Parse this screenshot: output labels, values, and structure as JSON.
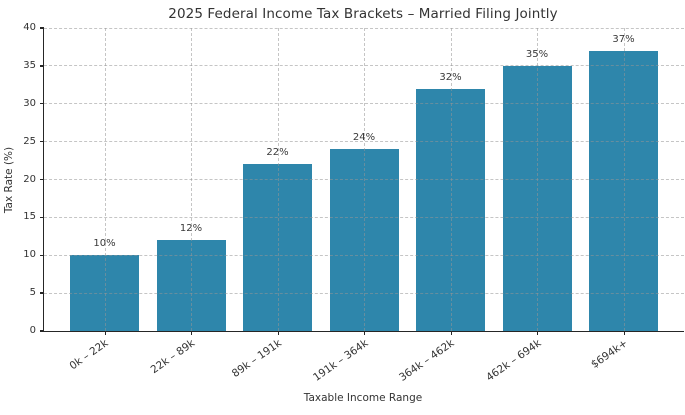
{
  "chart_data": {
    "type": "bar",
    "title": "2025 Federal Income Tax Brackets – Married Filing Jointly",
    "categories": [
      "0k – 22k",
      "22k – 89k",
      "89k – 191k",
      "191k – 364k",
      "364k – 462k",
      "462k – 694k",
      "$694k+"
    ],
    "values": [
      10,
      12,
      22,
      24,
      32,
      35,
      37
    ],
    "bar_labels": [
      "10%",
      "12%",
      "22%",
      "24%",
      "32%",
      "35%",
      "37%"
    ],
    "xlabel": "Taxable Income Range",
    "ylabel": "Tax Rate (%)",
    "ylim": [
      0,
      40
    ],
    "yticks": [
      0,
      5,
      10,
      15,
      20,
      25,
      30,
      35,
      40
    ],
    "grid": true,
    "grid_style": "dashed",
    "legend_position": "none",
    "bar_color": "#2E86AB",
    "text_color": "#333333",
    "axis_color": "#262626"
  }
}
